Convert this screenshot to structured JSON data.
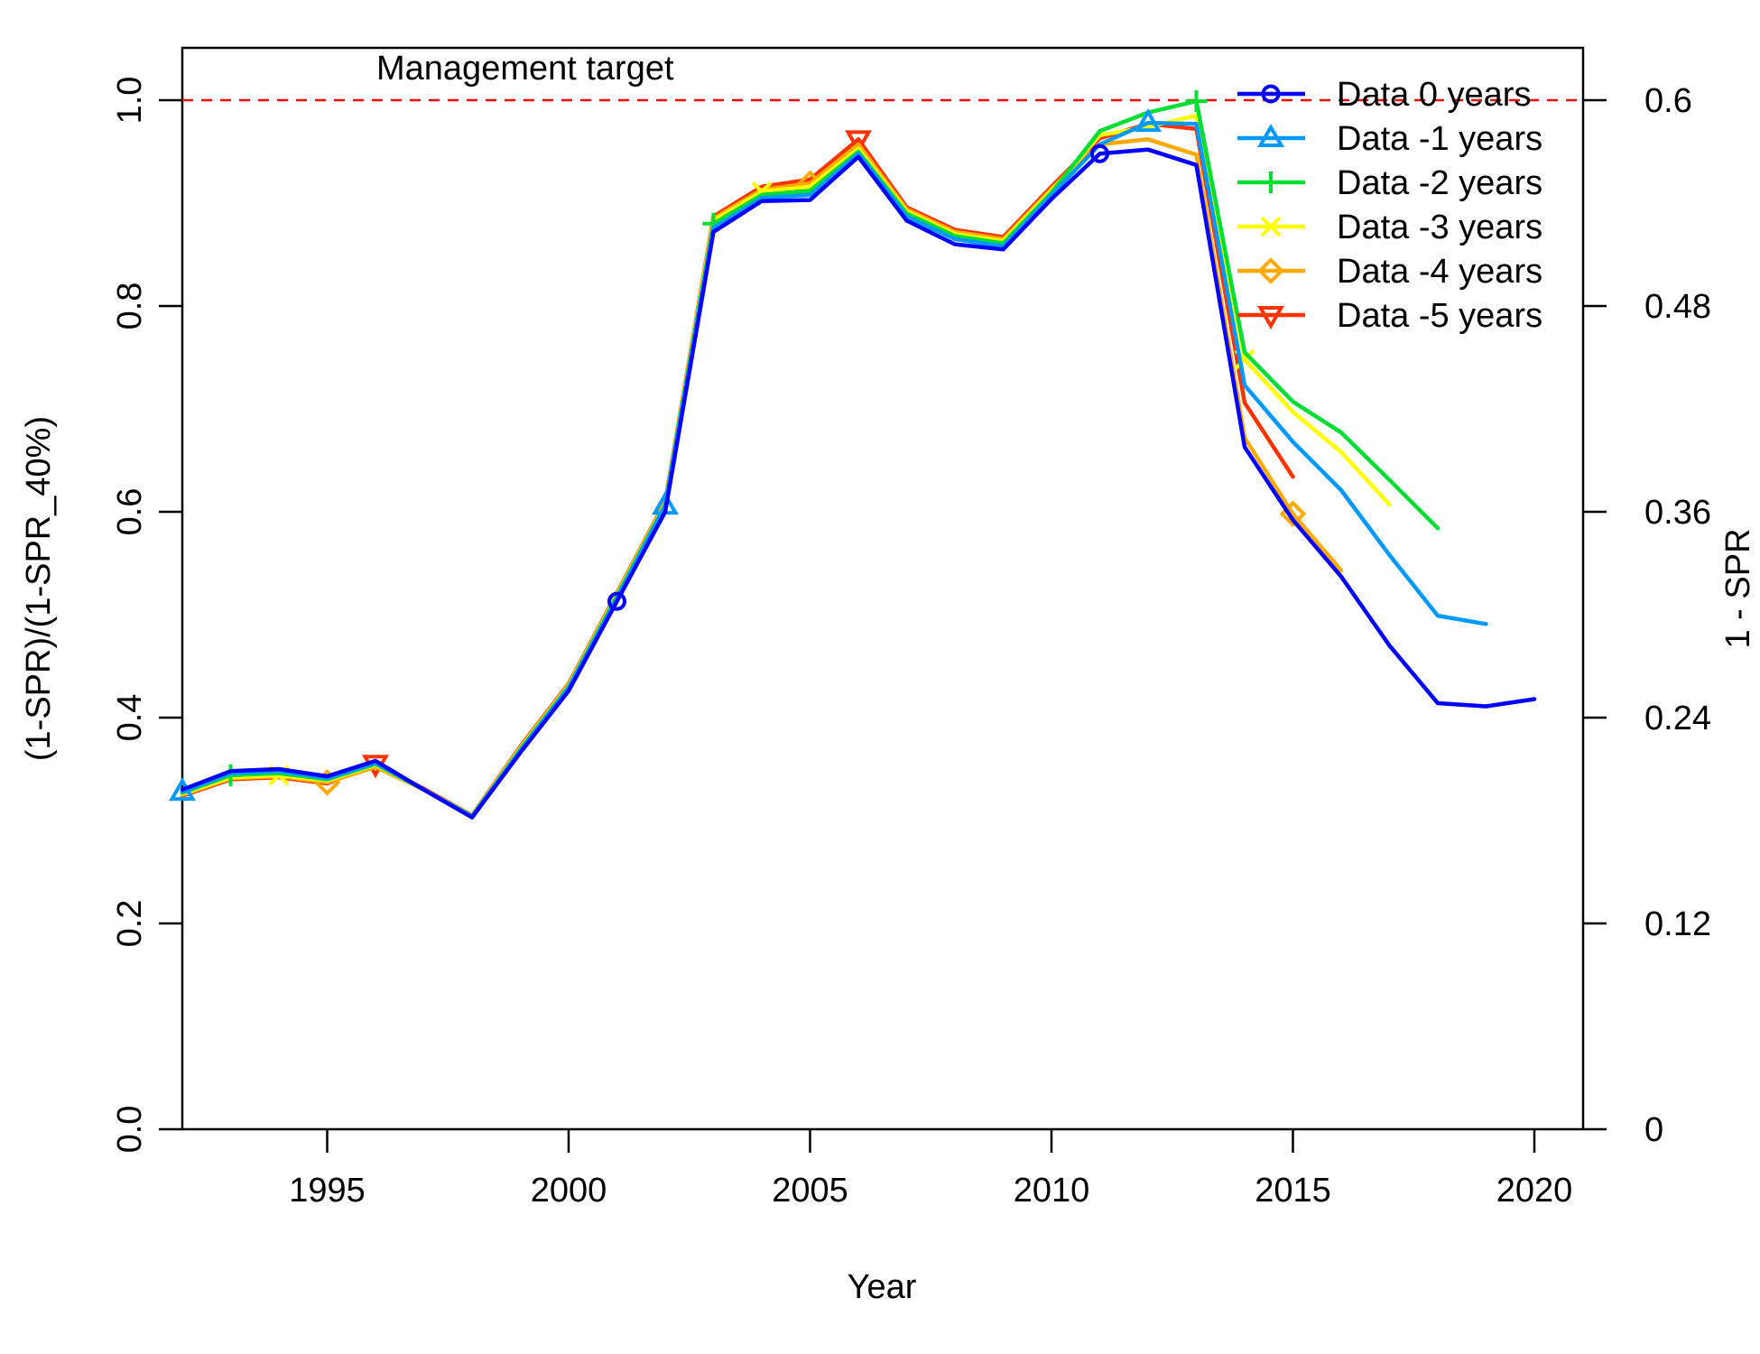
{
  "chart_data": {
    "type": "line",
    "title": "",
    "xlabel": "Year",
    "ylabel": "(1-SPR)/(1-SPR_40%)",
    "y2label": "1 - SPR",
    "xlim": [
      1992,
      2021
    ],
    "ylim": [
      0,
      1.05
    ],
    "x_ticks": [
      "1995",
      "2000",
      "2005",
      "2010",
      "2015",
      "2020"
    ],
    "y_ticks": [
      "0.0",
      "0.2",
      "0.4",
      "0.6",
      "0.8",
      "1.0"
    ],
    "y2_ticks": [
      "0",
      "0.12",
      "0.24",
      "0.36",
      "0.48",
      "0.6"
    ],
    "target": {
      "value": 1.0,
      "label": "Management target",
      "color": "#ff0000"
    },
    "legend_position": "top-right",
    "series": [
      {
        "name": "Data 0 years",
        "color": "#0000ff",
        "marker": "circle",
        "x": [
          1992,
          1993,
          1994,
          1995,
          1996,
          1997,
          1998,
          1999,
          2000,
          2001,
          2002,
          2003,
          2004,
          2005,
          2006,
          2007,
          2008,
          2009,
          2010,
          2011,
          2012,
          2013,
          2014,
          2015,
          2016,
          2017,
          2018,
          2019,
          2020
        ],
        "y": [
          0.33,
          0.348,
          0.35,
          0.343,
          0.358,
          0.33,
          0.303,
          0.366,
          0.426,
          0.513,
          0.6,
          0.872,
          0.902,
          0.903,
          0.945,
          0.883,
          0.86,
          0.855,
          0.904,
          0.948,
          0.952,
          0.937,
          0.663,
          0.592,
          0.537,
          0.47,
          0.414,
          0.411,
          0.418
        ],
        "marker_x": [
          2001,
          2011
        ]
      },
      {
        "name": "Data -1 years",
        "color": "#0099ff",
        "marker": "triangle",
        "x": [
          1992,
          1993,
          1994,
          1995,
          1996,
          1997,
          1998,
          1999,
          2000,
          2001,
          2002,
          2003,
          2004,
          2005,
          2006,
          2007,
          2008,
          2009,
          2010,
          2011,
          2012,
          2013,
          2014,
          2015,
          2016,
          2017,
          2018,
          2019
        ],
        "y": [
          0.328,
          0.346,
          0.348,
          0.341,
          0.356,
          0.33,
          0.304,
          0.368,
          0.429,
          0.516,
          0.606,
          0.876,
          0.905,
          0.908,
          0.948,
          0.887,
          0.865,
          0.858,
          0.908,
          0.957,
          0.978,
          0.977,
          0.723,
          0.668,
          0.621,
          0.558,
          0.499,
          0.491
        ],
        "marker_x": [
          1992,
          2002,
          2012
        ]
      },
      {
        "name": "Data -2 years",
        "color": "#00dd33",
        "marker": "plus",
        "x": [
          1992,
          1993,
          1994,
          1995,
          1996,
          1997,
          1998,
          1999,
          2000,
          2001,
          2002,
          2003,
          2004,
          2005,
          2006,
          2007,
          2008,
          2009,
          2010,
          2011,
          2012,
          2013,
          2014,
          2015,
          2016,
          2017,
          2018
        ],
        "y": [
          0.327,
          0.344,
          0.346,
          0.34,
          0.355,
          0.33,
          0.304,
          0.369,
          0.43,
          0.518,
          0.607,
          0.88,
          0.908,
          0.912,
          0.95,
          0.89,
          0.868,
          0.861,
          0.91,
          0.97,
          0.988,
          0.999,
          0.755,
          0.707,
          0.677,
          0.631,
          0.584
        ],
        "marker_x": [
          1993,
          2003,
          2013
        ]
      },
      {
        "name": "Data -3 years",
        "color": "#ffff00",
        "marker": "x",
        "x": [
          1992,
          1993,
          1994,
          1995,
          1996,
          1997,
          1998,
          1999,
          2000,
          2001,
          2002,
          2003,
          2004,
          2005,
          2006,
          2007,
          2008,
          2009,
          2010,
          2011,
          2012,
          2013,
          2014,
          2015,
          2016,
          2017
        ],
        "y": [
          0.326,
          0.342,
          0.344,
          0.339,
          0.354,
          0.33,
          0.304,
          0.37,
          0.431,
          0.519,
          0.608,
          0.883,
          0.911,
          0.916,
          0.953,
          0.892,
          0.87,
          0.863,
          0.912,
          0.966,
          0.974,
          0.985,
          0.748,
          0.697,
          0.658,
          0.607
        ],
        "marker_x": [
          1994,
          2004,
          2014
        ]
      },
      {
        "name": "Data -4 years",
        "color": "#ffaa00",
        "marker": "diamond",
        "x": [
          1992,
          1993,
          1994,
          1995,
          1996,
          1997,
          1998,
          1999,
          2000,
          2001,
          2002,
          2003,
          2004,
          2005,
          2006,
          2007,
          2008,
          2009,
          2010,
          2011,
          2012,
          2013,
          2014,
          2015,
          2016
        ],
        "y": [
          0.325,
          0.341,
          0.343,
          0.337,
          0.352,
          0.33,
          0.305,
          0.371,
          0.432,
          0.52,
          0.609,
          0.885,
          0.913,
          0.919,
          0.957,
          0.894,
          0.872,
          0.865,
          0.914,
          0.957,
          0.962,
          0.947,
          0.672,
          0.598,
          0.543
        ],
        "marker_x": [
          1995,
          2005,
          2015
        ]
      },
      {
        "name": "Data -5 years",
        "color": "#ff3300",
        "marker": "triangle-down",
        "x": [
          1992,
          1993,
          1994,
          1995,
          1996,
          1997,
          1998,
          1999,
          2000,
          2001,
          2002,
          2003,
          2004,
          2005,
          2006,
          2007,
          2008,
          2009,
          2010,
          2011,
          2012,
          2013,
          2014,
          2015
        ],
        "y": [
          0.324,
          0.34,
          0.342,
          0.336,
          0.355,
          0.331,
          0.305,
          0.372,
          0.433,
          0.521,
          0.61,
          0.887,
          0.916,
          0.923,
          0.962,
          0.896,
          0.874,
          0.867,
          0.916,
          0.963,
          0.977,
          0.972,
          0.706,
          0.634
        ],
        "marker_x": [
          1996,
          2006
        ]
      }
    ]
  }
}
